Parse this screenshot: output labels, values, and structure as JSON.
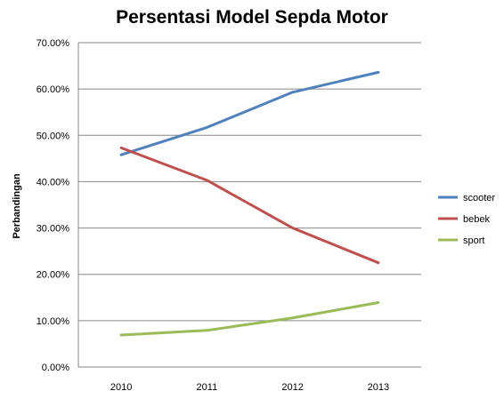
{
  "chart_data": {
    "type": "line",
    "title": "Persentasi Model Sepda Motor",
    "xlabel": "",
    "ylabel": "Perbandingan",
    "categories": [
      "2010",
      "2011",
      "2012",
      "2013"
    ],
    "ylim": [
      0,
      70
    ],
    "yticks": [
      "0.00%",
      "10.00%",
      "20.00%",
      "30.00%",
      "40.00%",
      "50.00%",
      "60.00%",
      "70.00%"
    ],
    "grid": true,
    "legend_position": "right",
    "series": [
      {
        "name": "scooter",
        "color": "#4f81bd",
        "values": [
          45.8,
          51.7,
          59.3,
          63.6
        ]
      },
      {
        "name": "bebek",
        "color": "#c0504d",
        "values": [
          47.3,
          40.3,
          30.0,
          22.5
        ]
      },
      {
        "name": "sport",
        "color": "#9bbb59",
        "values": [
          6.9,
          7.9,
          10.6,
          13.9
        ]
      }
    ]
  }
}
